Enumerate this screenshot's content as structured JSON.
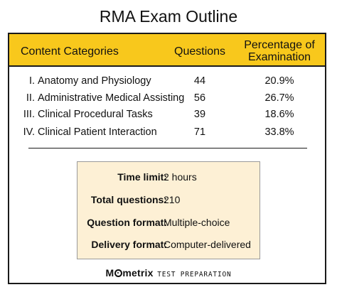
{
  "title": "RMA Exam Outline",
  "colors": {
    "header": "#f8c81c",
    "info_box": "#fdf0d5",
    "border": "#1a1a1a"
  },
  "table": {
    "headers": {
      "category": "Content Categories",
      "questions": "Questions",
      "percentage_line1": "Percentage of",
      "percentage_line2": "Examination"
    },
    "rows": [
      {
        "num": "I.",
        "name": "Anatomy and Physiology",
        "questions": "44",
        "percent": "20.9%"
      },
      {
        "num": "II.",
        "name": "Administrative Medical Assisting",
        "questions": "56",
        "percent": "26.7%"
      },
      {
        "num": "III.",
        "name": "Clinical Procedural Tasks",
        "questions": "39",
        "percent": "18.6%"
      },
      {
        "num": "IV.",
        "name": "Clinical Patient Interaction",
        "questions": "71",
        "percent": "33.8%"
      }
    ]
  },
  "info": [
    {
      "label": "Time limit:",
      "value": "2 hours"
    },
    {
      "label": "Total questions:",
      "value": "210"
    },
    {
      "label": "Question format:",
      "value": "Multiple-choice"
    },
    {
      "label": "Delivery format:",
      "value": "Computer-delivered"
    }
  ],
  "brand": {
    "name_part1": "M",
    "logo_icon": "circle-o-icon",
    "name_part2": "metrix",
    "tagline": "TEST PREPARATION"
  }
}
